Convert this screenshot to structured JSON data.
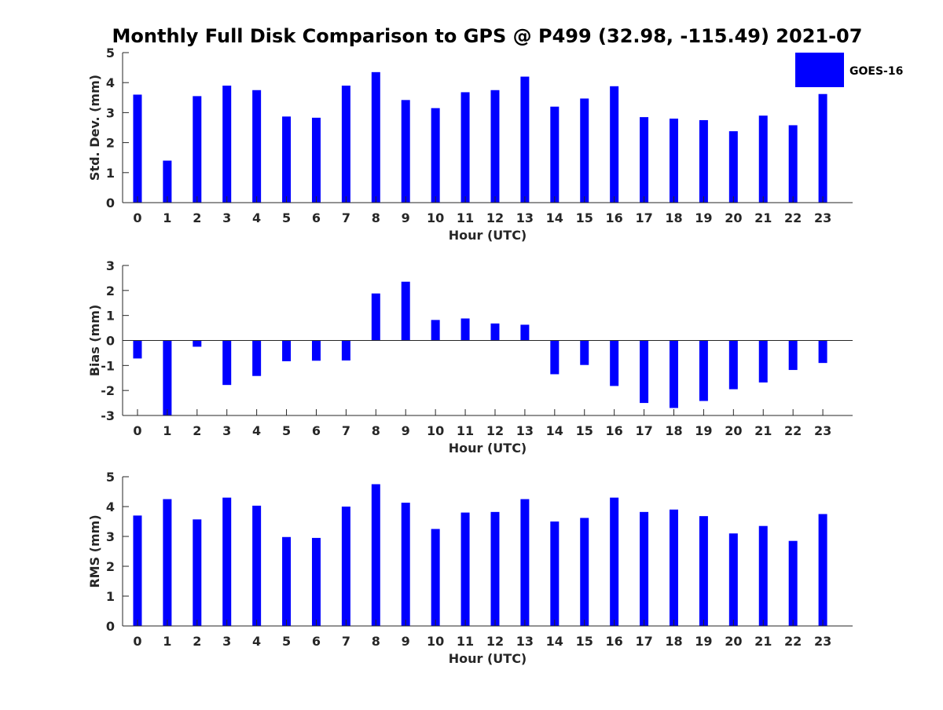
{
  "title": "Monthly Full Disk Comparison to GPS @ P499 (32.98, -115.49) 2021-07",
  "legend": {
    "label": "GOES-16",
    "color": "#0000ff"
  },
  "colors": {
    "bar": "#0000ff",
    "axis": "#262626"
  },
  "chart_data": [
    {
      "type": "bar",
      "name": "stddev",
      "series_name": "GOES-16",
      "categories": [
        "0",
        "1",
        "2",
        "3",
        "4",
        "5",
        "6",
        "7",
        "8",
        "9",
        "10",
        "11",
        "12",
        "13",
        "14",
        "15",
        "16",
        "17",
        "18",
        "19",
        "20",
        "21",
        "22",
        "23"
      ],
      "values": [
        3.6,
        1.4,
        3.55,
        3.9,
        3.75,
        2.87,
        2.83,
        3.9,
        4.35,
        3.42,
        3.15,
        3.68,
        3.75,
        4.2,
        3.2,
        3.47,
        3.88,
        2.85,
        2.8,
        2.75,
        2.38,
        2.9,
        2.58,
        3.62
      ],
      "xlabel": "Hour (UTC)",
      "ylabel": "Std. Dev. (mm)",
      "ylim": [
        0,
        5
      ],
      "yticks": [
        "0",
        "1",
        "2",
        "3",
        "4",
        "5"
      ]
    },
    {
      "type": "bar",
      "name": "bias",
      "series_name": "GOES-16",
      "categories": [
        "0",
        "1",
        "2",
        "3",
        "4",
        "5",
        "6",
        "7",
        "8",
        "9",
        "10",
        "11",
        "12",
        "13",
        "14",
        "15",
        "16",
        "17",
        "18",
        "19",
        "20",
        "21",
        "22",
        "23"
      ],
      "values": [
        -0.72,
        -3.0,
        -0.25,
        -1.78,
        -1.42,
        -0.83,
        -0.81,
        -0.8,
        1.88,
        2.35,
        0.82,
        0.88,
        0.68,
        0.63,
        -1.35,
        -0.98,
        -1.82,
        -2.5,
        -2.7,
        -2.42,
        -1.95,
        -1.68,
        -1.18,
        -0.9
      ],
      "xlabel": "Hour (UTC)",
      "ylabel": "Bias (mm)",
      "ylim": [
        -3,
        3
      ],
      "yticks": [
        "-3",
        "-2",
        "-1",
        "0",
        "1",
        "2",
        "3"
      ]
    },
    {
      "type": "bar",
      "name": "rms",
      "series_name": "GOES-16",
      "categories": [
        "0",
        "1",
        "2",
        "3",
        "4",
        "5",
        "6",
        "7",
        "8",
        "9",
        "10",
        "11",
        "12",
        "13",
        "14",
        "15",
        "16",
        "17",
        "18",
        "19",
        "20",
        "21",
        "22",
        "23"
      ],
      "values": [
        3.7,
        4.25,
        3.57,
        4.3,
        4.03,
        2.98,
        2.95,
        4.0,
        4.75,
        4.13,
        3.25,
        3.8,
        3.82,
        4.25,
        3.5,
        3.62,
        4.3,
        3.82,
        3.9,
        3.68,
        3.1,
        3.35,
        2.85,
        3.75
      ],
      "xlabel": "Hour (UTC)",
      "ylabel": "RMS (mm)",
      "ylim": [
        0,
        5
      ],
      "yticks": [
        "0",
        "1",
        "2",
        "3",
        "4",
        "5"
      ]
    }
  ]
}
